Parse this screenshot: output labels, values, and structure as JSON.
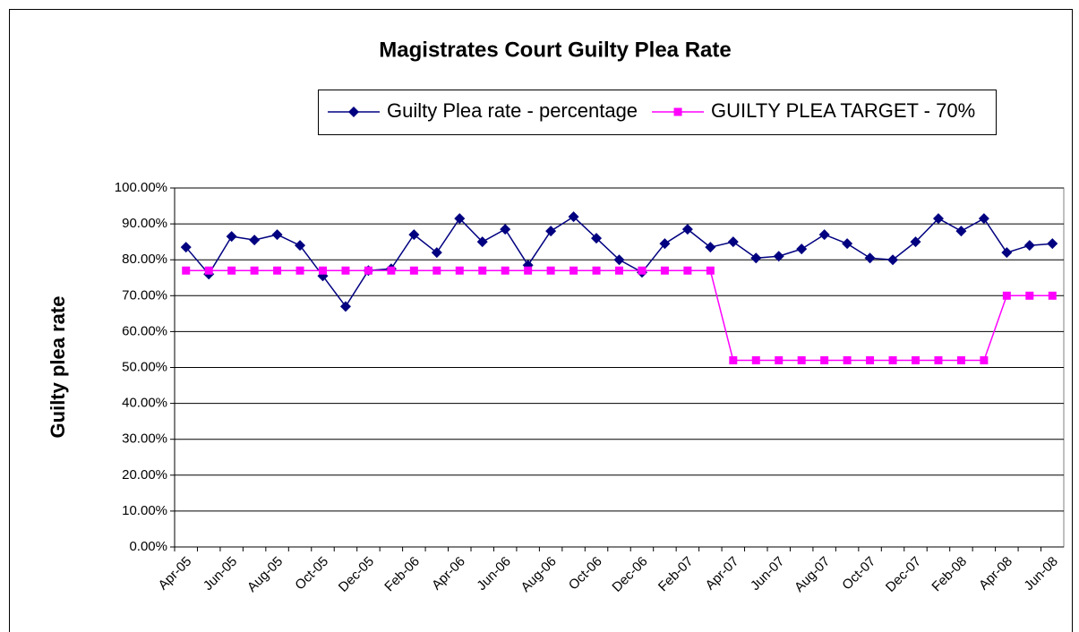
{
  "chart_data": {
    "type": "line",
    "title": "Magistrates Court Guilty Plea Rate",
    "y_label": "Guilty plea rate",
    "categories": [
      "Apr-05",
      null,
      "Jun-05",
      null,
      "Aug-05",
      null,
      "Oct-05",
      null,
      "Dec-05",
      null,
      "Feb-06",
      null,
      "Apr-06",
      null,
      "Jun-06",
      null,
      "Aug-06",
      null,
      "Oct-06",
      null,
      "Dec-06",
      null,
      "Feb-07",
      null,
      "Apr-07",
      null,
      "Jun-07",
      null,
      "Aug-07",
      null,
      "Oct-07",
      null,
      "Dec-07",
      null,
      "Feb-08",
      null,
      "Apr-08",
      null,
      "Jun-08"
    ],
    "series": [
      {
        "name": "Guilty Plea rate - percentage",
        "color": "#000080",
        "marker": "diamond",
        "values": [
          83.5,
          76,
          86.5,
          85.5,
          87,
          84,
          75.5,
          67,
          77,
          77.5,
          87,
          82,
          91.5,
          85,
          88.5,
          78.5,
          88,
          92,
          86,
          80,
          76.5,
          84.5,
          88.5,
          83.5,
          85,
          80.5,
          81,
          83,
          87,
          84.5,
          80.5,
          80,
          85,
          91.5,
          88,
          91.5,
          82,
          84,
          84.5
        ]
      },
      {
        "name": "GUILTY PLEA TARGET - 70%",
        "color": "#ff00ff",
        "marker": "square",
        "values": [
          77,
          77,
          77,
          77,
          77,
          77,
          77,
          77,
          77,
          77,
          77,
          77,
          77,
          77,
          77,
          77,
          77,
          77,
          77,
          77,
          77,
          77,
          77,
          77,
          52,
          52,
          52,
          52,
          52,
          52,
          52,
          52,
          52,
          52,
          52,
          52,
          70,
          70,
          70
        ]
      }
    ],
    "ylim": [
      0,
      100
    ],
    "yticks": [
      {
        "value": 0,
        "label": "0.00%"
      },
      {
        "value": 10,
        "label": "10.00%"
      },
      {
        "value": 20,
        "label": "20.00%"
      },
      {
        "value": 30,
        "label": "30.00%"
      },
      {
        "value": 40,
        "label": "40.00%"
      },
      {
        "value": 50,
        "label": "50.00%"
      },
      {
        "value": 60,
        "label": "60.00%"
      },
      {
        "value": 70,
        "label": "70.00%"
      },
      {
        "value": 80,
        "label": "80.00%"
      },
      {
        "value": 90,
        "label": "90.00%"
      },
      {
        "value": 100,
        "label": "100.00%"
      }
    ],
    "grid": true,
    "legend": "top"
  }
}
